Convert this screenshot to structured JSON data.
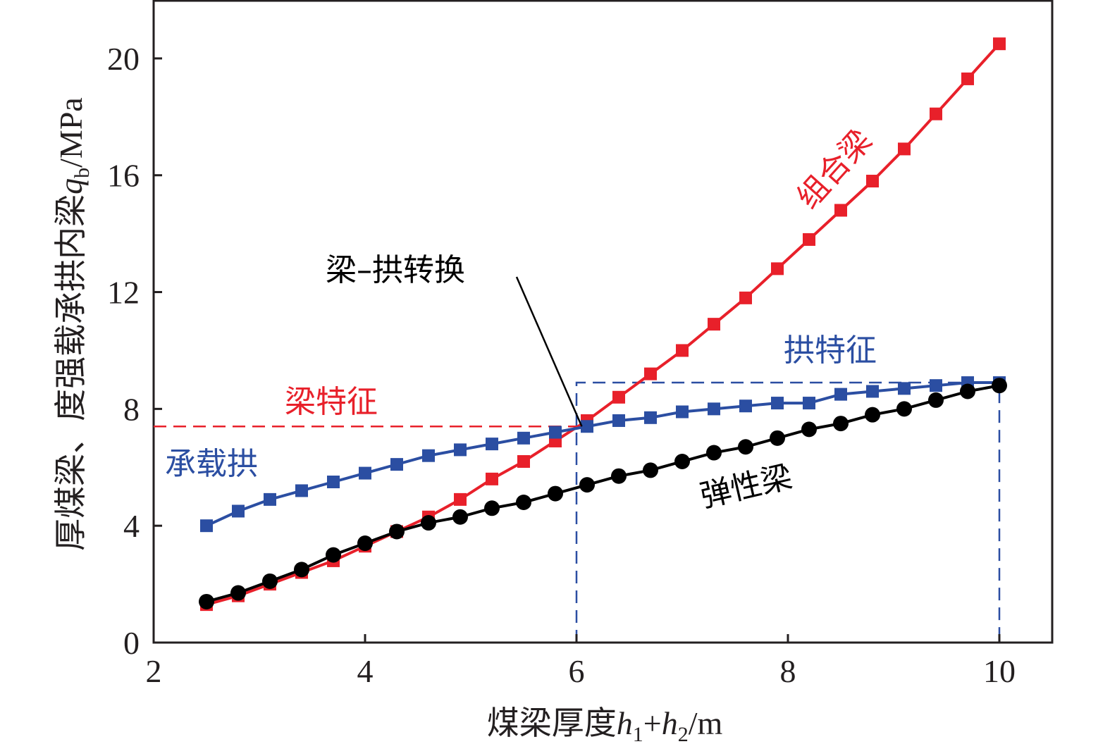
{
  "chart_data": {
    "type": "line",
    "xlabel": "煤梁厚度h1+h2/m",
    "xlabel_parts": {
      "main": "煤梁厚度",
      "h": "h",
      "sub1": "1",
      "plus": "+",
      "sub2": "2",
      "unit": "/m"
    },
    "ylabel": "厚煤梁、度强载承拱内梁qb/MPa",
    "ylabel_parts": {
      "main": "厚煤梁、度强载承拱内梁",
      "q": "q",
      "sub": "b",
      "unit": "/MPa"
    },
    "xlim": [
      2,
      10.5
    ],
    "ylim": [
      0,
      22
    ],
    "xticks": [
      "2",
      "4",
      "6",
      "8",
      "10"
    ],
    "yticks": [
      "0",
      "4",
      "8",
      "12",
      "16",
      "20"
    ],
    "grid": false,
    "series": [
      {
        "name": "组合梁",
        "color": "#e8202a",
        "marker": "square",
        "x": [
          2.5,
          2.8,
          3.1,
          3.4,
          3.7,
          4.0,
          4.3,
          4.6,
          4.9,
          5.2,
          5.5,
          5.8,
          6.1,
          6.4,
          6.7,
          7.0,
          7.3,
          7.6,
          7.9,
          8.2,
          8.5,
          8.8,
          9.1,
          9.4,
          9.7,
          10.0
        ],
        "y": [
          1.3,
          1.6,
          2.0,
          2.4,
          2.8,
          3.3,
          3.8,
          4.3,
          4.9,
          5.6,
          6.2,
          6.9,
          7.6,
          8.4,
          9.2,
          10.0,
          10.9,
          11.8,
          12.8,
          13.8,
          14.8,
          15.8,
          16.9,
          18.1,
          19.3,
          20.5
        ]
      },
      {
        "name": "承载拱",
        "color": "#2b4ea2",
        "marker": "square",
        "x": [
          2.5,
          2.8,
          3.1,
          3.4,
          3.7,
          4.0,
          4.3,
          4.6,
          4.9,
          5.2,
          5.5,
          5.8,
          6.1,
          6.4,
          6.7,
          7.0,
          7.3,
          7.6,
          7.9,
          8.2,
          8.5,
          8.8,
          9.1,
          9.4,
          9.7,
          10.0
        ],
        "y": [
          4.0,
          4.5,
          4.9,
          5.2,
          5.5,
          5.8,
          6.1,
          6.4,
          6.6,
          6.8,
          7.0,
          7.2,
          7.4,
          7.6,
          7.7,
          7.9,
          8.0,
          8.1,
          8.2,
          8.2,
          8.5,
          8.6,
          8.7,
          8.8,
          8.9,
          8.9
        ]
      },
      {
        "name": "弹性梁",
        "color": "#000000",
        "marker": "circle",
        "x": [
          2.5,
          2.8,
          3.1,
          3.4,
          3.7,
          4.0,
          4.3,
          4.6,
          4.9,
          5.2,
          5.5,
          5.8,
          6.1,
          6.4,
          6.7,
          7.0,
          7.3,
          7.6,
          7.9,
          8.2,
          8.5,
          8.8,
          9.1,
          9.4,
          9.7,
          10.0
        ],
        "y": [
          1.4,
          1.7,
          2.1,
          2.5,
          3.0,
          3.4,
          3.8,
          4.1,
          4.3,
          4.6,
          4.8,
          5.1,
          5.4,
          5.7,
          5.9,
          6.2,
          6.5,
          6.7,
          7.0,
          7.3,
          7.5,
          7.8,
          8.0,
          8.3,
          8.6,
          8.8
        ]
      }
    ],
    "reference_lines": {
      "beam_feature_y": 7.4,
      "beam_feature_color": "#e8202a",
      "arch_box": {
        "x0": 6.0,
        "x1": 10.0,
        "y0": 0,
        "y1": 8.9
      },
      "arch_box_color": "#2b4ea2"
    },
    "annotations": {
      "combo_beam": "组合梁",
      "load_arch": "承载拱",
      "elastic_beam": "弹性梁",
      "beam_feature": "梁特征",
      "arch_feature": "拱特征",
      "transition": "梁–拱转换",
      "transition_point": {
        "x": 6.05,
        "y": 7.4
      }
    }
  }
}
